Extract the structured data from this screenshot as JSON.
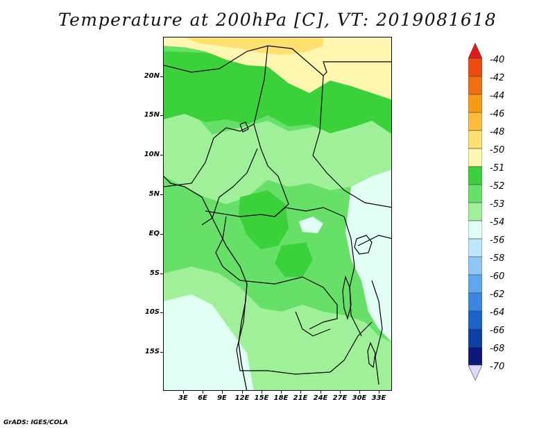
{
  "title": "Temperature at 200hPa [C], VT: 2019081618",
  "credit": "GrADS: IGES/COLA",
  "map": {
    "lat_labels": [
      "20N",
      "15N",
      "10N",
      "5N",
      "EQ",
      "5S",
      "10S",
      "15S"
    ],
    "lon_labels": [
      "3E",
      "6E",
      "9E",
      "12E",
      "15E",
      "18E",
      "21E",
      "24E",
      "27E",
      "30E",
      "33E"
    ]
  },
  "colorbar": {
    "labels": [
      "-40",
      "-42",
      "-44",
      "-46",
      "-48",
      "-50",
      "-51",
      "-52",
      "-53",
      "-54",
      "-56",
      "-58",
      "-60",
      "-62",
      "-64",
      "-66",
      "-68",
      "-70"
    ],
    "colors": [
      "#e41a1a",
      "#f04a10",
      "#f26e0e",
      "#f79a14",
      "#fbbd3a",
      "#fde070",
      "#fff6b0",
      "#3ad13a",
      "#66e066",
      "#a0f09a",
      "#e2fff4",
      "#bde6fa",
      "#8ec7f5",
      "#5da8ef",
      "#3b86e0",
      "#1b62cc",
      "#0d3fa8",
      "#0a1a78",
      "#dcd8ff"
    ]
  }
}
